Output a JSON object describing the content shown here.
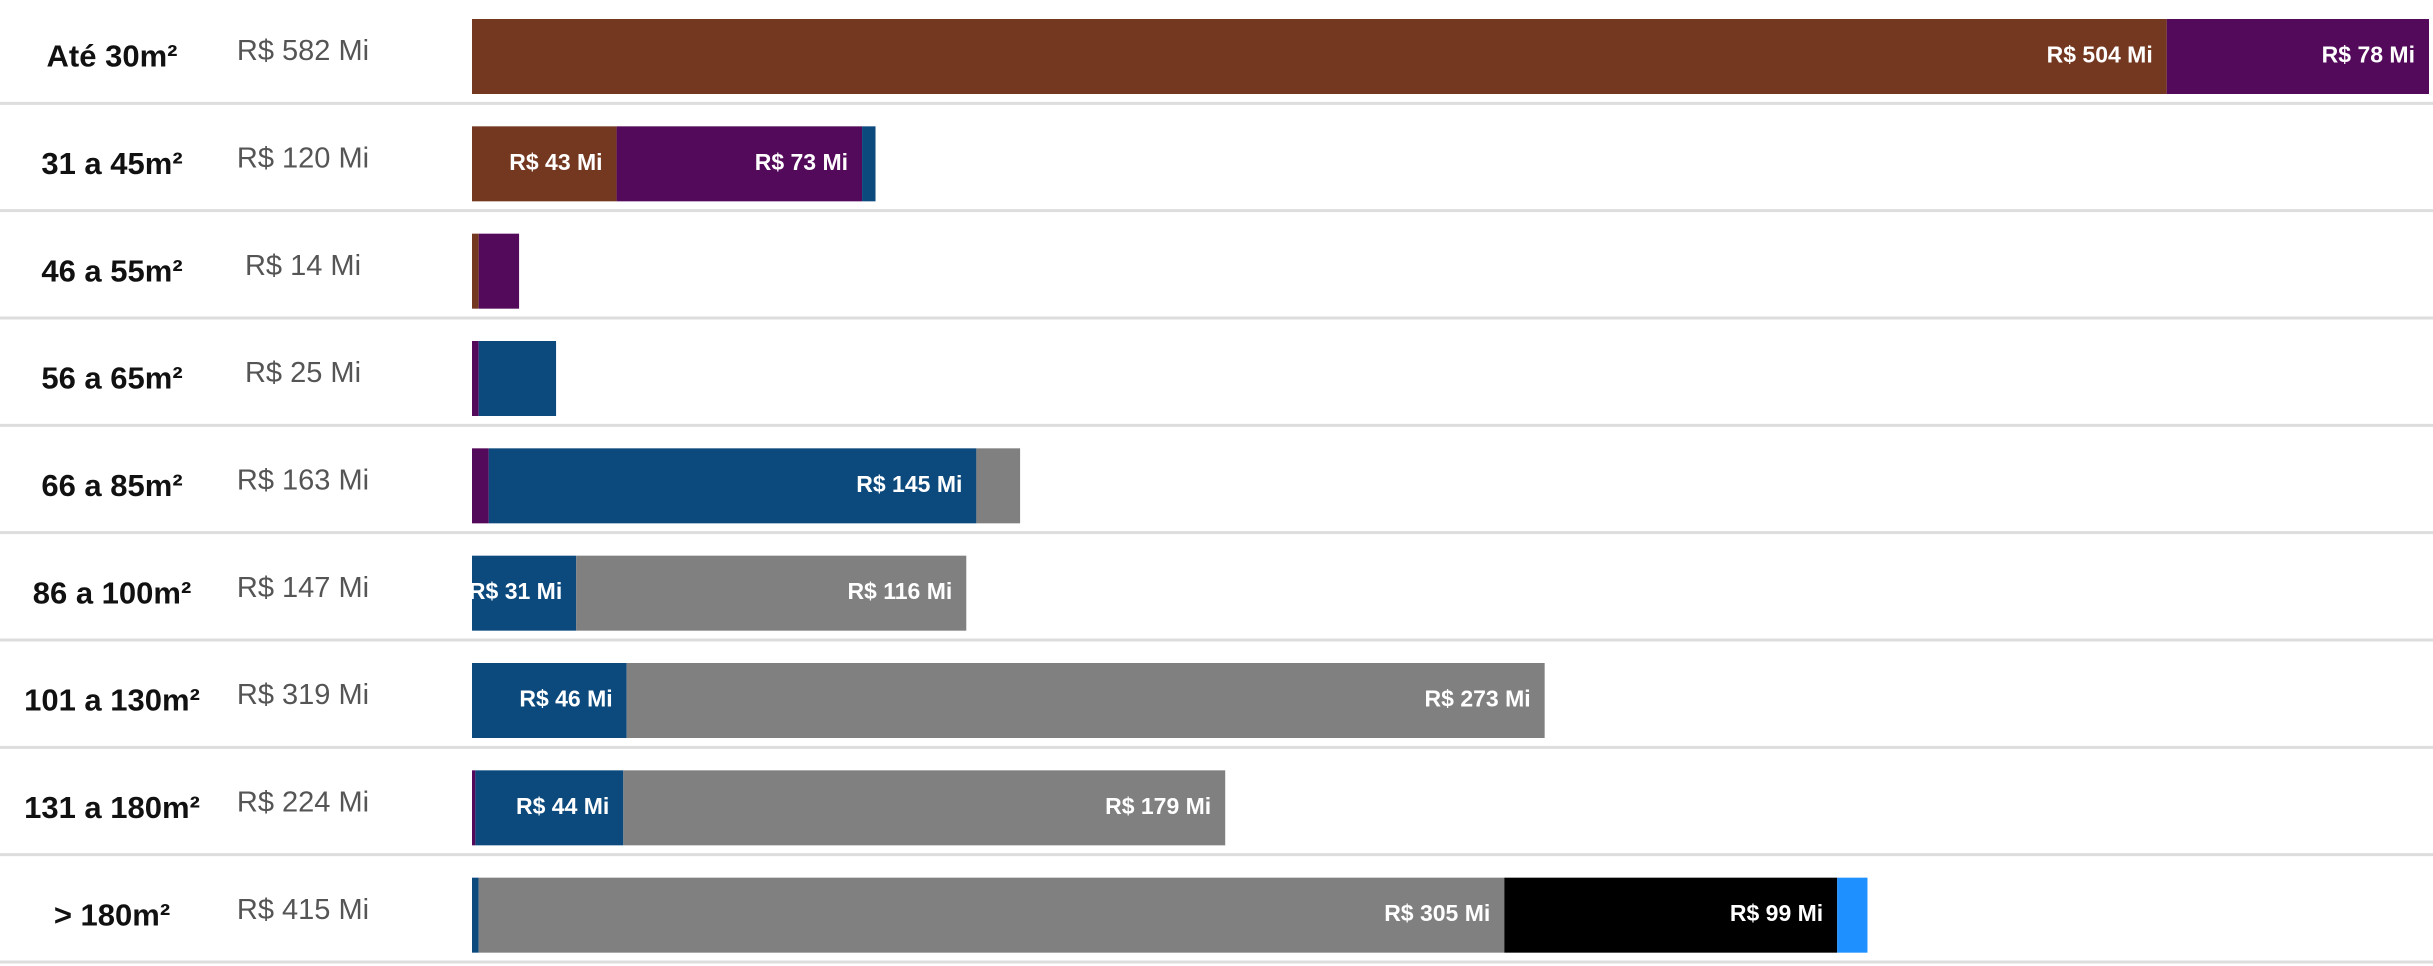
{
  "chart_data": {
    "type": "stacked-bar",
    "orientation": "horizontal",
    "categories": [
      "Até 30m²",
      "31 a 45m²",
      "46 a 55m²",
      "56 a 65m²",
      "66 a 85m²",
      "86 a 100m²",
      "101 a 130m²",
      "131 a 180m²",
      "> 180m²"
    ],
    "total_labels": [
      "R$ 582 Mi",
      "R$ 120 Mi",
      "R$ 14 Mi",
      "R$ 25 Mi",
      "R$ 163 Mi",
      "R$ 147 Mi",
      "R$ 319 Mi",
      "R$ 224 Mi",
      "R$ 415 Mi"
    ],
    "series": [
      {
        "color": "#74371f",
        "values": [
          504,
          43,
          2,
          0,
          0,
          0,
          0,
          0,
          0
        ],
        "value_labels": [
          "R$ 504 Mi",
          "R$ 43 Mi",
          null,
          null,
          null,
          null,
          null,
          null,
          null
        ]
      },
      {
        "color": "#530a5a",
        "values": [
          78,
          73,
          12,
          2,
          5,
          0,
          0,
          1,
          0
        ],
        "value_labels": [
          "R$ 78 Mi",
          "R$ 73 Mi",
          null,
          null,
          null,
          null,
          null,
          null,
          null
        ]
      },
      {
        "color": "#0c4a7e",
        "values": [
          0,
          4,
          0,
          23,
          145,
          31,
          46,
          44,
          2
        ],
        "value_labels": [
          null,
          null,
          null,
          null,
          "R$ 145 Mi",
          "R$ 31 Mi",
          "R$ 46 Mi",
          "R$ 44 Mi",
          null
        ]
      },
      {
        "color": "#808080",
        "values": [
          0,
          0,
          0,
          0,
          13,
          116,
          273,
          179,
          305
        ],
        "value_labels": [
          null,
          null,
          null,
          null,
          null,
          "R$ 116 Mi",
          "R$ 273 Mi",
          "R$ 179 Mi",
          "R$ 305 Mi"
        ]
      },
      {
        "color": "#000000",
        "values": [
          0,
          0,
          0,
          0,
          0,
          0,
          0,
          0,
          99
        ],
        "value_labels": [
          null,
          null,
          null,
          null,
          null,
          null,
          null,
          null,
          "R$ 99 Mi"
        ]
      },
      {
        "color": "#1e90ff",
        "values": [
          0,
          0,
          0,
          0,
          0,
          0,
          0,
          0,
          9
        ],
        "value_labels": [
          null,
          null,
          null,
          null,
          null,
          null,
          null,
          null,
          null
        ]
      }
    ]
  }
}
